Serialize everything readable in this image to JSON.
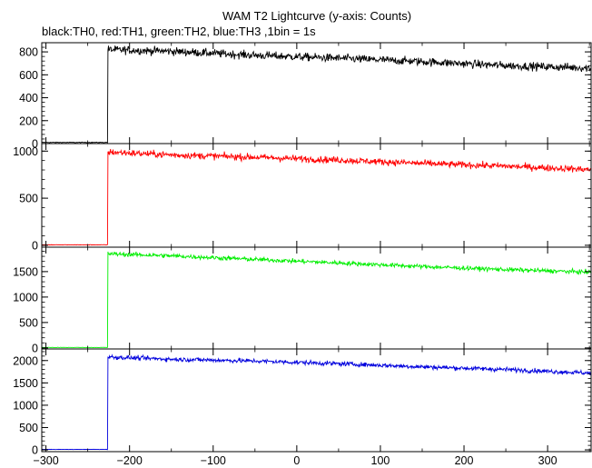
{
  "header": {
    "title": "WAM T2 Lightcurve (y-axis: Counts)",
    "subtitle": "black:TH0, red:TH1, green:TH2, blue:TH3 ,1bin = 1s"
  },
  "chart_data": {
    "type": "line",
    "title": "WAM T2 Lightcurve (y-axis: Counts)",
    "subtitle": "black:TH0, red:TH1, green:TH2, blue:TH3 ,1bin = 1s",
    "xlim": [
      -305,
      352
    ],
    "x_ticks": [
      -300,
      -200,
      -100,
      0,
      100,
      200,
      300
    ],
    "x_tick_labels": [
      "−300",
      "−200",
      "−100",
      "0",
      "100",
      "200",
      "300"
    ],
    "grid": false,
    "bin_seconds": 1,
    "panels": [
      {
        "name": "TH0",
        "color": "#000000",
        "ylim": [
          0,
          880
        ],
        "y_ticks": [
          0,
          200,
          400,
          600,
          800
        ],
        "pre_level": 10,
        "onset_x": -226,
        "noise": 25,
        "profile_x": [
          -226,
          -150,
          -50,
          50,
          150,
          250,
          350
        ],
        "profile_y": [
          820,
          805,
          770,
          745,
          715,
          680,
          660
        ]
      },
      {
        "name": "TH1",
        "color": "#ff0000",
        "ylim": [
          -20,
          1080
        ],
        "y_ticks": [
          0,
          500,
          1000
        ],
        "pre_level": 5,
        "onset_x": -226,
        "noise": 25,
        "profile_x": [
          -226,
          -150,
          -50,
          50,
          150,
          250,
          350
        ],
        "profile_y": [
          990,
          960,
          935,
          905,
          870,
          840,
          805
        ]
      },
      {
        "name": "TH2",
        "color": "#00ee00",
        "ylim": [
          -20,
          1980
        ],
        "y_ticks": [
          0,
          500,
          1000,
          1500
        ],
        "pre_level": 10,
        "onset_x": -226,
        "noise": 30,
        "profile_x": [
          -226,
          -150,
          -50,
          50,
          150,
          250,
          350
        ],
        "profile_y": [
          1850,
          1810,
          1740,
          1670,
          1600,
          1540,
          1490
        ]
      },
      {
        "name": "TH3",
        "color": "#0000dd",
        "ylim": [
          -40,
          2260
        ],
        "y_ticks": [
          0,
          500,
          1000,
          1500,
          2000
        ],
        "pre_level": 10,
        "onset_x": -226,
        "noise": 35,
        "profile_x": [
          -226,
          -150,
          -50,
          50,
          150,
          250,
          350
        ],
        "profile_y": [
          2080,
          2030,
          1990,
          1930,
          1860,
          1800,
          1720
        ]
      }
    ]
  }
}
